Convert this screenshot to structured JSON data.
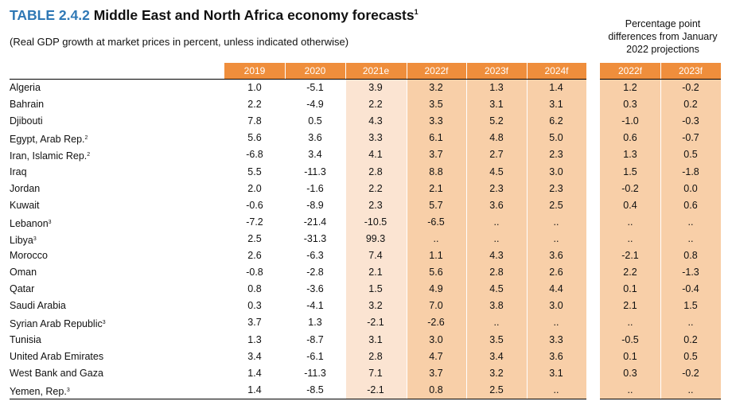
{
  "table": {
    "number": "TABLE 2.4.2",
    "title": "Middle East and North Africa economy forecasts",
    "title_note": "1",
    "subtitle": "(Real GDP growth at market prices in percent, unless indicated otherwise)",
    "pp_header": [
      "Percentage point",
      "differences from January",
      "2022 projections"
    ],
    "columns": [
      "2019",
      "2020",
      "2021e",
      "2022f",
      "2023f",
      "2024f"
    ],
    "pp_columns": [
      "2022f",
      "2023f"
    ],
    "colors": {
      "header": "#ef8e3c",
      "estimate_tint": "#fbe4d2",
      "forecast_tint": "#f8cfa8",
      "title_number": "#2f78b5"
    },
    "rows": [
      {
        "name": "Algeria",
        "note": "",
        "v": [
          "1.0",
          "-5.1",
          "3.9",
          "3.2",
          "1.3",
          "1.4"
        ],
        "pp": [
          "1.2",
          "-0.2"
        ]
      },
      {
        "name": "Bahrain",
        "note": "",
        "v": [
          "2.2",
          "-4.9",
          "2.2",
          "3.5",
          "3.1",
          "3.1"
        ],
        "pp": [
          "0.3",
          "0.2"
        ]
      },
      {
        "name": "Djibouti",
        "note": "",
        "v": [
          "7.8",
          "0.5",
          "4.3",
          "3.3",
          "5.2",
          "6.2"
        ],
        "pp": [
          "-1.0",
          "-0.3"
        ]
      },
      {
        "name": "Egypt, Arab Rep.",
        "note": "2",
        "v": [
          "5.6",
          "3.6",
          "3.3",
          "6.1",
          "4.8",
          "5.0"
        ],
        "pp": [
          "0.6",
          "-0.7"
        ]
      },
      {
        "name": "Iran, Islamic Rep.",
        "note": "2",
        "v": [
          "-6.8",
          "3.4",
          "4.1",
          "3.7",
          "2.7",
          "2.3"
        ],
        "pp": [
          "1.3",
          "0.5"
        ]
      },
      {
        "name": "Iraq",
        "note": "",
        "v": [
          "5.5",
          "-11.3",
          "2.8",
          "8.8",
          "4.5",
          "3.0"
        ],
        "pp": [
          "1.5",
          "-1.8"
        ]
      },
      {
        "name": "Jordan",
        "note": "",
        "v": [
          "2.0",
          "-1.6",
          "2.2",
          "2.1",
          "2.3",
          "2.3"
        ],
        "pp": [
          "-0.2",
          "0.0"
        ]
      },
      {
        "name": "Kuwait",
        "note": "",
        "v": [
          "-0.6",
          "-8.9",
          "2.3",
          "5.7",
          "3.6",
          "2.5"
        ],
        "pp": [
          "0.4",
          "0.6"
        ]
      },
      {
        "name": "Lebanon",
        "note": "3",
        "v": [
          "-7.2",
          "-21.4",
          "-10.5",
          "-6.5",
          "..",
          ".."
        ],
        "pp": [
          "..",
          ".."
        ]
      },
      {
        "name": "Libya",
        "note": "3",
        "v": [
          "2.5",
          "-31.3",
          "99.3",
          "..",
          "..",
          ".."
        ],
        "pp": [
          "..",
          ".."
        ]
      },
      {
        "name": "Morocco",
        "note": "",
        "v": [
          "2.6",
          "-6.3",
          "7.4",
          "1.1",
          "4.3",
          "3.6"
        ],
        "pp": [
          "-2.1",
          "0.8"
        ]
      },
      {
        "name": "Oman",
        "note": "",
        "v": [
          "-0.8",
          "-2.8",
          "2.1",
          "5.6",
          "2.8",
          "2.6"
        ],
        "pp": [
          "2.2",
          "-1.3"
        ]
      },
      {
        "name": "Qatar",
        "note": "",
        "v": [
          "0.8",
          "-3.6",
          "1.5",
          "4.9",
          "4.5",
          "4.4"
        ],
        "pp": [
          "0.1",
          "-0.4"
        ]
      },
      {
        "name": "Saudi Arabia",
        "note": "",
        "v": [
          "0.3",
          "-4.1",
          "3.2",
          "7.0",
          "3.8",
          "3.0"
        ],
        "pp": [
          "2.1",
          "1.5"
        ]
      },
      {
        "name": "Syrian Arab Republic",
        "note": "3",
        "v": [
          "3.7",
          "1.3",
          "-2.1",
          "-2.6",
          "..",
          ".."
        ],
        "pp": [
          "..",
          ".."
        ]
      },
      {
        "name": "Tunisia",
        "note": "",
        "v": [
          "1.3",
          "-8.7",
          "3.1",
          "3.0",
          "3.5",
          "3.3"
        ],
        "pp": [
          "-0.5",
          "0.2"
        ]
      },
      {
        "name": "United Arab Emirates",
        "note": "",
        "v": [
          "3.4",
          "-6.1",
          "2.8",
          "4.7",
          "3.4",
          "3.6"
        ],
        "pp": [
          "0.1",
          "0.5"
        ]
      },
      {
        "name": "West Bank and Gaza",
        "note": "",
        "v": [
          "1.4",
          "-11.3",
          "7.1",
          "3.7",
          "3.2",
          "3.1"
        ],
        "pp": [
          "0.3",
          "-0.2"
        ]
      },
      {
        "name": "Yemen, Rep.",
        "note": "3",
        "v": [
          "1.4",
          "-8.5",
          "-2.1",
          "0.8",
          "2.5",
          ".."
        ],
        "pp": [
          "..",
          ".."
        ]
      }
    ]
  }
}
